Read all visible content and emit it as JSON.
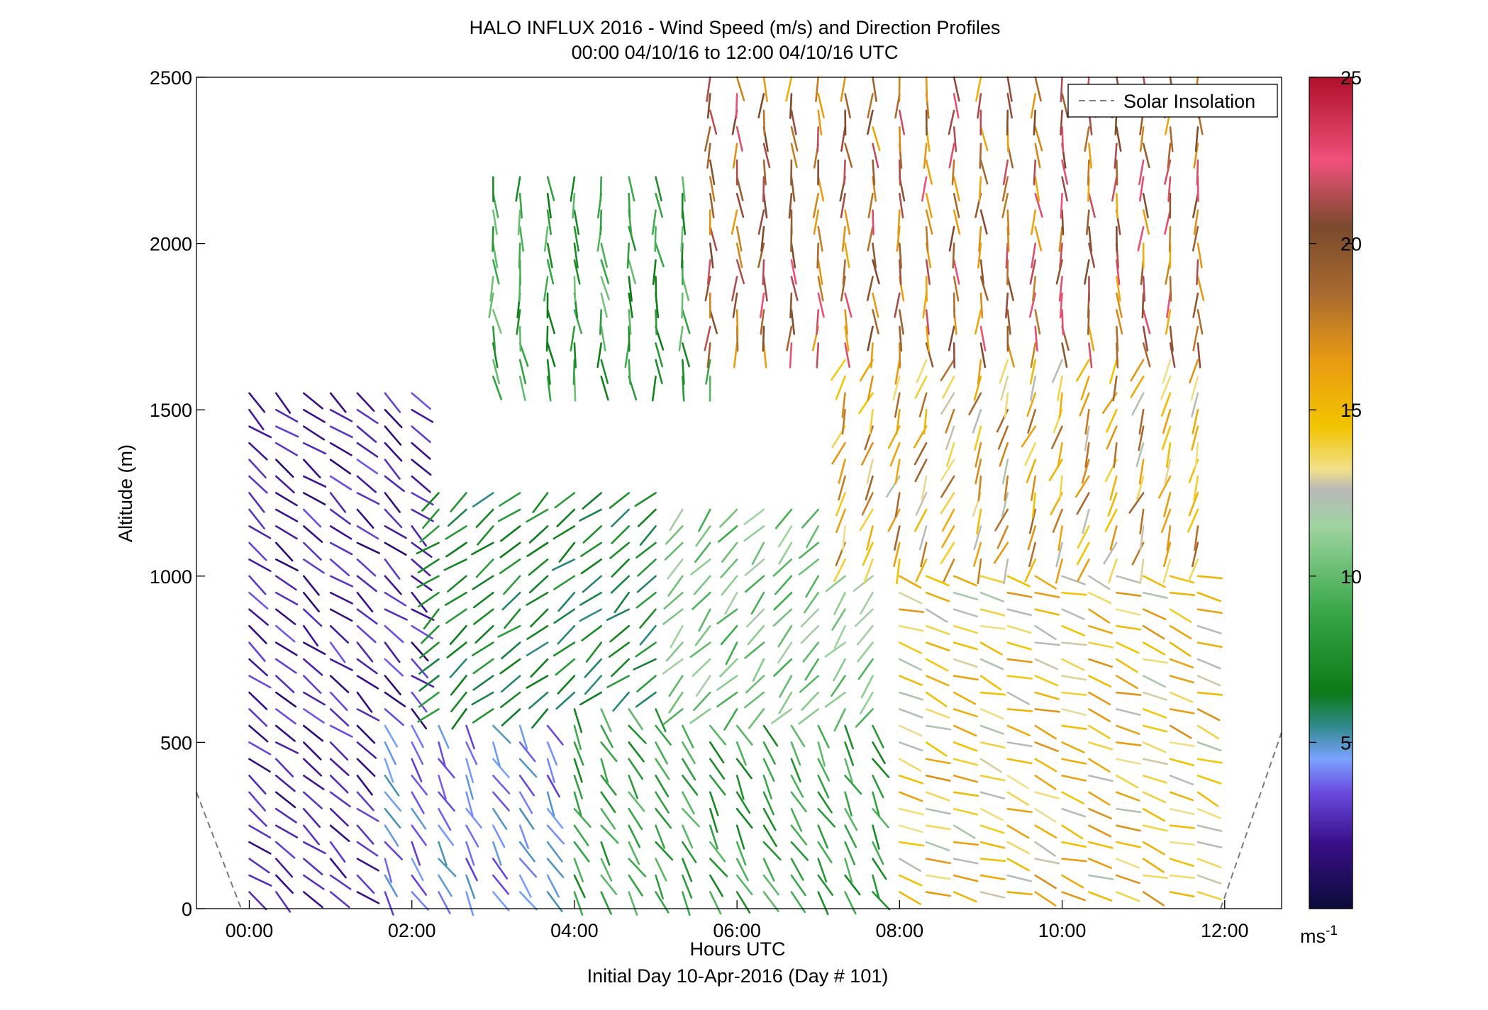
{
  "chart_data": {
    "type": "wind_profile",
    "title": "HALO INFLUX 2016 - Wind Speed (m/s) and Direction Profiles",
    "subtitle": "00:00 04/10/16 to 12:00 04/10/16  UTC",
    "xlabel": "Hours UTC",
    "xlabel2": "Initial Day 10-Apr-2016 (Day # 101)",
    "ylabel": "Altitude (m)",
    "xlim_hours": [
      -0.65,
      12.7
    ],
    "ylim": [
      0,
      2500
    ],
    "x_ticks": [
      {
        "value": 0,
        "label": "00:00"
      },
      {
        "value": 2,
        "label": "02:00"
      },
      {
        "value": 4,
        "label": "04:00"
      },
      {
        "value": 6,
        "label": "06:00"
      },
      {
        "value": 8,
        "label": "08:00"
      },
      {
        "value": 10,
        "label": "10:00"
      },
      {
        "value": 12,
        "label": "12:00"
      }
    ],
    "y_ticks": [
      {
        "value": 0,
        "label": "0"
      },
      {
        "value": 500,
        "label": "500"
      },
      {
        "value": 1000,
        "label": "1000"
      },
      {
        "value": 1500,
        "label": "1500"
      },
      {
        "value": 2000,
        "label": "2000"
      },
      {
        "value": 2500,
        "label": "2500"
      }
    ],
    "colorbar": {
      "range": [
        0,
        25
      ],
      "ticks": [
        {
          "value": 5,
          "label": "5"
        },
        {
          "value": 10,
          "label": "10"
        },
        {
          "value": 15,
          "label": "15"
        },
        {
          "value": 20,
          "label": "20"
        },
        {
          "value": 25,
          "label": "25"
        }
      ],
      "unit": "ms",
      "unit_exponent": "-1",
      "stops": [
        {
          "v": 0,
          "c": "#0b0b3a"
        },
        {
          "v": 2,
          "c": "#3a0f8a"
        },
        {
          "v": 3.5,
          "c": "#6a4be0"
        },
        {
          "v": 4.5,
          "c": "#7aa2ff"
        },
        {
          "v": 5.5,
          "c": "#2f8a8a"
        },
        {
          "v": 6.5,
          "c": "#0b7a16"
        },
        {
          "v": 9,
          "c": "#3aa84a"
        },
        {
          "v": 11.5,
          "c": "#9fd4a0"
        },
        {
          "v": 12.6,
          "c": "#b8b8b8"
        },
        {
          "v": 13.2,
          "c": "#f1e08a"
        },
        {
          "v": 14.5,
          "c": "#f2c400"
        },
        {
          "v": 16.5,
          "c": "#e89a12"
        },
        {
          "v": 18.5,
          "c": "#a86a30"
        },
        {
          "v": 20.5,
          "c": "#7a4a2c"
        },
        {
          "v": 22.5,
          "c": "#f0507a"
        },
        {
          "v": 25,
          "c": "#b0102a"
        }
      ]
    },
    "legend": {
      "label": "Solar Insolation",
      "style": "dashed",
      "color": "#7a7a7a",
      "placement": "top-right"
    },
    "solar_insolation": [
      {
        "x": -0.65,
        "y": 350
      },
      {
        "x": -0.1,
        "y": 0
      },
      {
        "x": 11.95,
        "y": 0
      },
      {
        "x": 12.7,
        "y": 530
      }
    ],
    "profile_times_hours": [
      0,
      0.33,
      0.67,
      1.0,
      1.33,
      1.67,
      2.0,
      2.33,
      2.67,
      3.0,
      3.33,
      3.67,
      4.0,
      4.33,
      4.67,
      5.0,
      5.33,
      5.67,
      6.0,
      6.33,
      6.67,
      7.0,
      7.33,
      7.67,
      8.0,
      8.33,
      8.67,
      9.0,
      9.33,
      9.67,
      10.0,
      10.33,
      10.67,
      11.0,
      11.33,
      11.67
    ],
    "profile_altitude_step_m": 50,
    "wind_regions": [
      {
        "t0": -0.3,
        "t1": 2.2,
        "z0": 0,
        "z1": 1550,
        "speed": 2.5,
        "speed_var": 1.2,
        "dir_deg": 320
      },
      {
        "t0": 1.5,
        "t1": 4.0,
        "z0": 0,
        "z1": 560,
        "speed": 4.2,
        "speed_var": 1.0,
        "dir_deg": 300
      },
      {
        "t0": 2.2,
        "t1": 5.2,
        "z0": 560,
        "z1": 1280,
        "speed": 7.0,
        "speed_var": 1.5,
        "dir_deg": 220
      },
      {
        "t0": 4.0,
        "t1": 8.0,
        "z0": 0,
        "z1": 600,
        "speed": 8.5,
        "speed_var": 1.5,
        "dir_deg": 300
      },
      {
        "t0": 5.2,
        "t1": 8.8,
        "z0": 600,
        "z1": 1200,
        "speed": 10.5,
        "speed_var": 1.5,
        "dir_deg": 230
      },
      {
        "t0": 8.0,
        "t1": 11.8,
        "z0": 0,
        "z1": 1050,
        "speed": 14.5,
        "speed_var": 2.5,
        "dir_deg": 340
      },
      {
        "t0": 7.2,
        "t1": 11.8,
        "z0": 1050,
        "z1": 1700,
        "speed": 15.5,
        "speed_var": 3.5,
        "dir_deg": 250
      },
      {
        "t0": 2.8,
        "t1": 5.8,
        "z0": 1600,
        "z1": 2200,
        "speed": 8.5,
        "speed_var": 2.0,
        "dir_deg": 275
      },
      {
        "t0": 5.5,
        "t1": 11.8,
        "z0": 1700,
        "z1": 2500,
        "speed": 19.0,
        "speed_var": 3.5,
        "dir_deg": 272
      }
    ]
  }
}
